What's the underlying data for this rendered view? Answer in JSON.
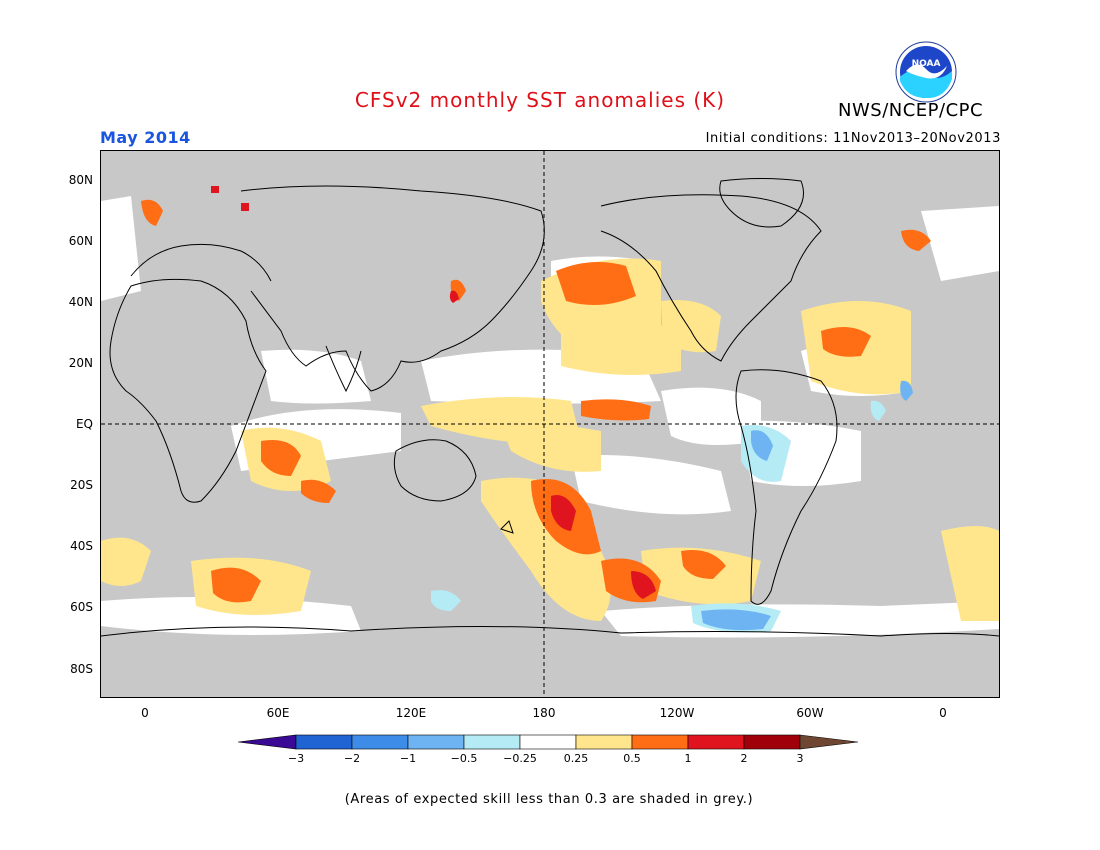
{
  "header": {
    "title": "CFSv2 monthly SST anomalies (K)",
    "agency": "NWS/NCEP/CPC",
    "valid_month": "May 2014",
    "initial_conditions": "Initial conditions: 11Nov2013–20Nov2013"
  },
  "logo": {
    "text": "NOAA",
    "icon": "noaa-logo-icon"
  },
  "map": {
    "projection": "cylindrical-equidistant",
    "lon_range": [
      -20,
      380
    ],
    "lat_range": [
      -90,
      90
    ],
    "lat_labels": [
      "80N",
      "60N",
      "40N",
      "20N",
      "EQ",
      "20S",
      "40S",
      "60S",
      "80S"
    ],
    "lon_labels": [
      "0",
      "60E",
      "120E",
      "180",
      "120W",
      "60W",
      "0"
    ],
    "dashed_lines": [
      "equator",
      "dateline"
    ],
    "colors": {
      "low_skill": "#c8c8c8",
      "land_outline": "#000000"
    }
  },
  "colorbar": {
    "labels": [
      "−3",
      "−2",
      "−1",
      "−0.5",
      "−0.25",
      "0.25",
      "0.5",
      "1",
      "2",
      "3"
    ],
    "colors": [
      "#3a0a96",
      "#1f64d2",
      "#3c8ce8",
      "#6eb4f2",
      "#b4ebf5",
      "#ffffff",
      "#ffe68c",
      "#ff6e14",
      "#e0141e",
      "#a0000a",
      "#6e4632"
    ]
  },
  "footnote": "(Areas of expected skill less than 0.3 are shaded in grey.)"
}
